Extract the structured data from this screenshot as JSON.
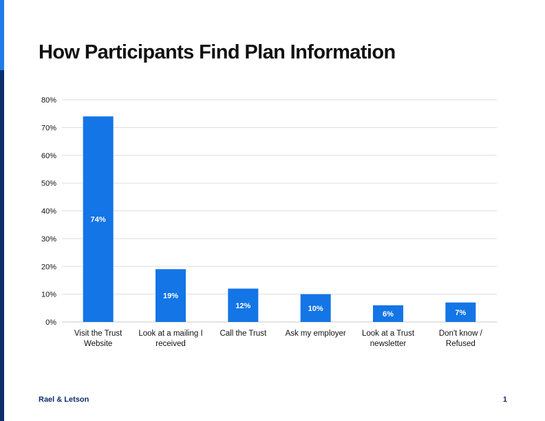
{
  "title": "How Participants Find Plan Information",
  "footer": {
    "brand": "Rael & Letson",
    "page_number": "1"
  },
  "colors": {
    "bar": "#1375e6",
    "accent_top": "#1f7be8",
    "accent_bottom": "#0d2f6e",
    "grid": "#dddddd"
  },
  "chart_data": {
    "type": "bar",
    "title": "How Participants Find Plan Information",
    "xlabel": "",
    "ylabel": "",
    "ylim": [
      0,
      80
    ],
    "yticks": [
      0,
      10,
      20,
      30,
      40,
      50,
      60,
      70,
      80
    ],
    "ytick_labels": [
      "0%",
      "10%",
      "20%",
      "30%",
      "40%",
      "50%",
      "60%",
      "70%",
      "80%"
    ],
    "grid": true,
    "legend": "none",
    "categories": [
      [
        "Visit the Trust",
        "Website"
      ],
      [
        "Look at a mailing I",
        "received"
      ],
      [
        "Call the Trust"
      ],
      [
        "Ask my employer"
      ],
      [
        "Look at a Trust",
        "newsletter"
      ],
      [
        "Don't know /",
        "Refused"
      ]
    ],
    "values": [
      74,
      19,
      12,
      10,
      6,
      7
    ],
    "data_labels": [
      "74%",
      "19%",
      "12%",
      "10%",
      "6%",
      "7%"
    ]
  }
}
